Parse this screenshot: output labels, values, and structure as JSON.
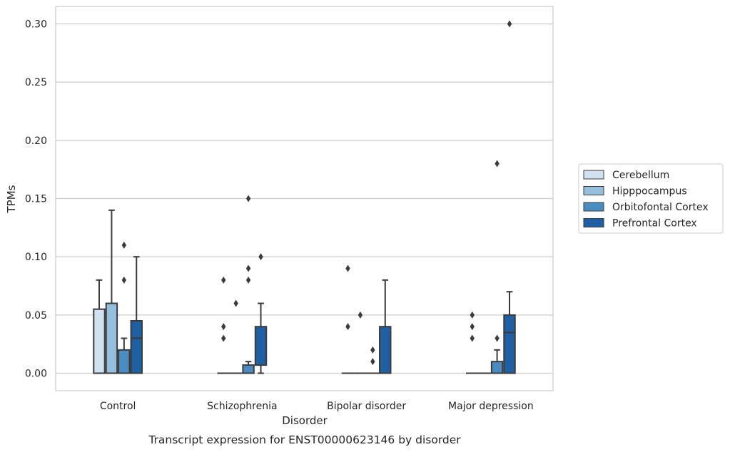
{
  "chart_data": {
    "type": "box",
    "title": "",
    "caption": "Transcript expression for ENST00000623146 by disorder",
    "xlabel": "Disorder",
    "ylabel": "TPMs",
    "ylim": [
      -0.015,
      0.315
    ],
    "yticks": [
      0.0,
      0.05,
      0.1,
      0.15,
      0.2,
      0.25,
      0.3
    ],
    "ytick_labels": [
      "0.00",
      "0.05",
      "0.10",
      "0.15",
      "0.20",
      "0.25",
      "0.30"
    ],
    "grid": "horizontal",
    "legend_position": "right",
    "categories": [
      "Control",
      "Schizophrenia",
      "Bipolar disorder",
      "Major depression"
    ],
    "series": [
      {
        "name": "Cerebellum",
        "color": "#d0e1f2",
        "boxes": [
          {
            "q1": 0.0,
            "median": 0.0,
            "q3": 0.055,
            "whisker_low": 0.0,
            "whisker_high": 0.08,
            "outliers": []
          },
          {
            "q1": 0.0,
            "median": 0.0,
            "q3": 0.0,
            "whisker_low": 0.0,
            "whisker_high": 0.0,
            "outliers": [
              0.03,
              0.04,
              0.08
            ]
          },
          {
            "q1": 0.0,
            "median": 0.0,
            "q3": 0.0,
            "whisker_low": 0.0,
            "whisker_high": 0.0,
            "outliers": [
              0.04,
              0.09
            ]
          },
          {
            "q1": 0.0,
            "median": 0.0,
            "q3": 0.0,
            "whisker_low": 0.0,
            "whisker_high": 0.0,
            "outliers": [
              0.03,
              0.04,
              0.05
            ]
          }
        ]
      },
      {
        "name": "Hipppocampus",
        "color": "#94bfdc",
        "boxes": [
          {
            "q1": 0.0,
            "median": 0.0,
            "q3": 0.06,
            "whisker_low": 0.0,
            "whisker_high": 0.14,
            "outliers": []
          },
          {
            "q1": 0.0,
            "median": 0.0,
            "q3": 0.0,
            "whisker_low": 0.0,
            "whisker_high": 0.0,
            "outliers": [
              0.06
            ]
          },
          {
            "q1": 0.0,
            "median": 0.0,
            "q3": 0.0,
            "whisker_low": 0.0,
            "whisker_high": 0.0,
            "outliers": [
              0.05
            ]
          },
          {
            "q1": 0.0,
            "median": 0.0,
            "q3": 0.0,
            "whisker_low": 0.0,
            "whisker_high": 0.0,
            "outliers": []
          }
        ]
      },
      {
        "name": "Orbitofontal Cortex",
        "color": "#4a8cc2",
        "boxes": [
          {
            "q1": 0.0,
            "median": 0.0,
            "q3": 0.02,
            "whisker_low": 0.0,
            "whisker_high": 0.03,
            "outliers": [
              0.08,
              0.11
            ]
          },
          {
            "q1": 0.0,
            "median": 0.0,
            "q3": 0.007,
            "whisker_low": 0.0,
            "whisker_high": 0.01,
            "outliers": [
              0.08,
              0.09,
              0.15
            ]
          },
          {
            "q1": 0.0,
            "median": 0.0,
            "q3": 0.0,
            "whisker_low": 0.0,
            "whisker_high": 0.0,
            "outliers": [
              0.01,
              0.02
            ]
          },
          {
            "q1": 0.0,
            "median": 0.0,
            "q3": 0.01,
            "whisker_low": 0.0,
            "whisker_high": 0.02,
            "outliers": [
              0.03,
              0.18
            ]
          }
        ]
      },
      {
        "name": "Prefrontal Cortex",
        "color": "#1f5fa3",
        "boxes": [
          {
            "q1": 0.0,
            "median": 0.03,
            "q3": 0.045,
            "whisker_low": 0.0,
            "whisker_high": 0.1,
            "outliers": []
          },
          {
            "q1": 0.007,
            "median": 0.007,
            "q3": 0.04,
            "whisker_low": 0.0,
            "whisker_high": 0.06,
            "outliers": [
              0.1
            ]
          },
          {
            "q1": 0.0,
            "median": 0.0,
            "q3": 0.04,
            "whisker_low": 0.0,
            "whisker_high": 0.08,
            "outliers": []
          },
          {
            "q1": 0.0,
            "median": 0.035,
            "q3": 0.05,
            "whisker_low": 0.0,
            "whisker_high": 0.07,
            "outliers": [
              0.3
            ]
          }
        ]
      }
    ]
  }
}
